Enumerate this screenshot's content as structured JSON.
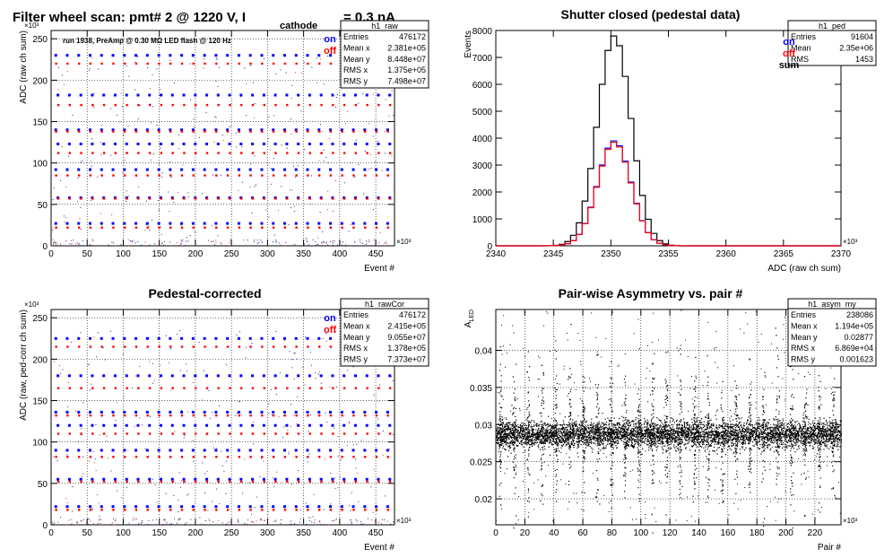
{
  "canvas_title": "Filter wheel scan: pmt#   2 @  1220 V, I",
  "canvas_title_sub": "cathode",
  "canvas_title_tail": "= 0.3 nA",
  "chart_data": [
    {
      "id": "raw",
      "type": "scatter",
      "title": "",
      "subtitle": "run 1938, PreAmp @ 0.30 MΩ  LED flash @  120 Hz",
      "xlabel": "Event #",
      "ylabel": "ADC (raw ch sum)",
      "x_exponent": "×10³",
      "y_exponent": "×10³",
      "xlim": [
        0,
        476
      ],
      "ylim": [
        0,
        260
      ],
      "xticks": [
        0,
        50,
        100,
        150,
        200,
        250,
        300,
        350,
        400,
        450
      ],
      "yticks": [
        0,
        50,
        100,
        150,
        200,
        250
      ],
      "grid": true,
      "legend": [
        "on",
        "off"
      ],
      "legend_colors": [
        "#0000ff",
        "#ff0000"
      ],
      "levels_on": [
        230,
        182,
        140,
        123,
        92,
        58,
        27
      ],
      "levels_off": [
        220,
        170,
        138,
        112,
        85,
        57,
        22
      ],
      "stats": {
        "name": "h1_raw",
        "rows": [
          [
            "Entries",
            "476172"
          ],
          [
            "Mean x",
            "2.381e+05"
          ],
          [
            "Mean y",
            "8.448e+07"
          ],
          [
            "RMS x",
            "1.375e+05"
          ],
          [
            "RMS y",
            "7.498e+07"
          ]
        ]
      }
    },
    {
      "id": "ped",
      "type": "line",
      "title": "Shutter closed (pedestal data)",
      "xlabel": "ADC (raw ch sum)",
      "ylabel": "Events",
      "x_exponent": "×10³",
      "xlim": [
        2340,
        2370
      ],
      "ylim": [
        0,
        8000
      ],
      "xticks": [
        2340,
        2345,
        2350,
        2355,
        2360,
        2365,
        2370
      ],
      "yticks": [
        0,
        1000,
        2000,
        3000,
        4000,
        5000,
        6000,
        7000,
        8000
      ],
      "grid": false,
      "legend": [
        "on",
        "off",
        "sum"
      ],
      "legend_colors": [
        "#0000ff",
        "#ff0000",
        "#000000"
      ],
      "series": [
        {
          "name": "sum",
          "peak": 7800,
          "center": 2350.3,
          "sigma": 1.45
        },
        {
          "name": "on",
          "peak": 3900,
          "center": 2350.3,
          "sigma": 1.45
        },
        {
          "name": "off",
          "peak": 3850,
          "center": 2350.3,
          "sigma": 1.45
        }
      ],
      "stats": {
        "name": "h1_ped",
        "rows": [
          [
            "Entries",
            "91604"
          ],
          [
            "Mean",
            "2.35e+06"
          ],
          [
            "RMS",
            "1453"
          ]
        ]
      }
    },
    {
      "id": "cor",
      "type": "scatter",
      "title": "Pedestal-corrected",
      "xlabel": "Event #",
      "ylabel": "ADC (raw, ped-corr ch sum)",
      "x_exponent": "×10³",
      "y_exponent": "×10³",
      "xlim": [
        0,
        476
      ],
      "ylim": [
        0,
        260
      ],
      "xticks": [
        0,
        50,
        100,
        150,
        200,
        250,
        300,
        350,
        400,
        450
      ],
      "yticks": [
        0,
        50,
        100,
        150,
        200,
        250
      ],
      "grid": true,
      "legend": [
        "on",
        "off"
      ],
      "legend_colors": [
        "#0000ff",
        "#ff0000"
      ],
      "levels_on": [
        225,
        180,
        136,
        120,
        90,
        55,
        22
      ],
      "levels_off": [
        215,
        165,
        132,
        110,
        82,
        52,
        18
      ],
      "stats": {
        "name": "h1_rawCor",
        "rows": [
          [
            "Entries",
            "476172"
          ],
          [
            "Mean x",
            "2.415e+05"
          ],
          [
            "Mean y",
            "9.055e+07"
          ],
          [
            "RMS x",
            "1.378e+05"
          ],
          [
            "RMS y",
            "7.373e+07"
          ]
        ]
      }
    },
    {
      "id": "asym",
      "type": "scatter",
      "title": "Pair-wise Asymmetry vs. pair #",
      "xlabel": "Pair #",
      "ylabel": "A",
      "ylabel_sub": "LED",
      "x_exponent": "×10³",
      "xlim": [
        0,
        238
      ],
      "ylim": [
        0.0165,
        0.0455
      ],
      "xticks": [
        0,
        20,
        40,
        60,
        80,
        100,
        120,
        140,
        160,
        180,
        200,
        220
      ],
      "yticks": [
        0.02,
        0.025,
        0.03,
        0.035,
        0.04
      ],
      "ytick_labels": [
        "0.02",
        "0.025",
        "0.03",
        "0.035",
        "0.04"
      ],
      "grid": true,
      "band_center": 0.0287,
      "band_halfwidth": 0.0016,
      "stats": {
        "name": "h1_asym_my",
        "rows": [
          [
            "Entries",
            "238086"
          ],
          [
            "Mean x",
            "1.194e+05"
          ],
          [
            "Mean y",
            "0.02877"
          ],
          [
            "RMS x",
            "6.869e+04"
          ],
          [
            "RMS y",
            "0.001623"
          ]
        ]
      }
    }
  ]
}
